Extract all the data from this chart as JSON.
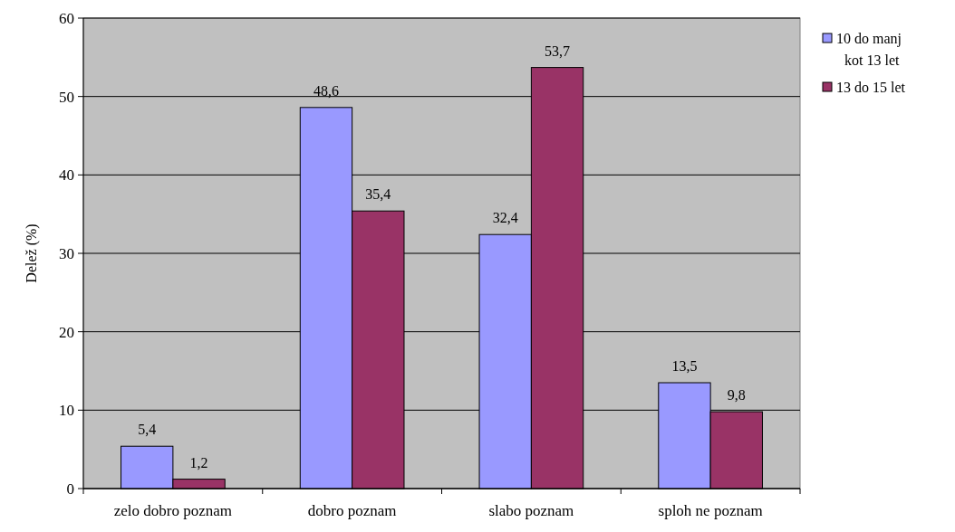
{
  "chart_data": {
    "type": "bar",
    "ylabel": "Delež (%)",
    "categories": [
      "zelo dobro poznam",
      "dobro poznam",
      "slabo poznam",
      "sploh ne poznam"
    ],
    "series": [
      {
        "name": "10 do manj kot 13 let",
        "color": "#9999ff",
        "values": [
          5.4,
          48.6,
          32.4,
          13.5
        ],
        "value_labels": [
          "5,4",
          "48,6",
          "32,4",
          "13,5"
        ]
      },
      {
        "name": "13 do 15 let",
        "color": "#993366",
        "values": [
          1.2,
          35.4,
          53.7,
          9.8
        ],
        "value_labels": [
          "1,2",
          "35,4",
          "53,7",
          "9,8"
        ]
      }
    ],
    "ylim": [
      0,
      60
    ],
    "yticks": [
      0,
      10,
      20,
      30,
      40,
      50,
      60
    ],
    "grid": "y",
    "legend": "right"
  }
}
